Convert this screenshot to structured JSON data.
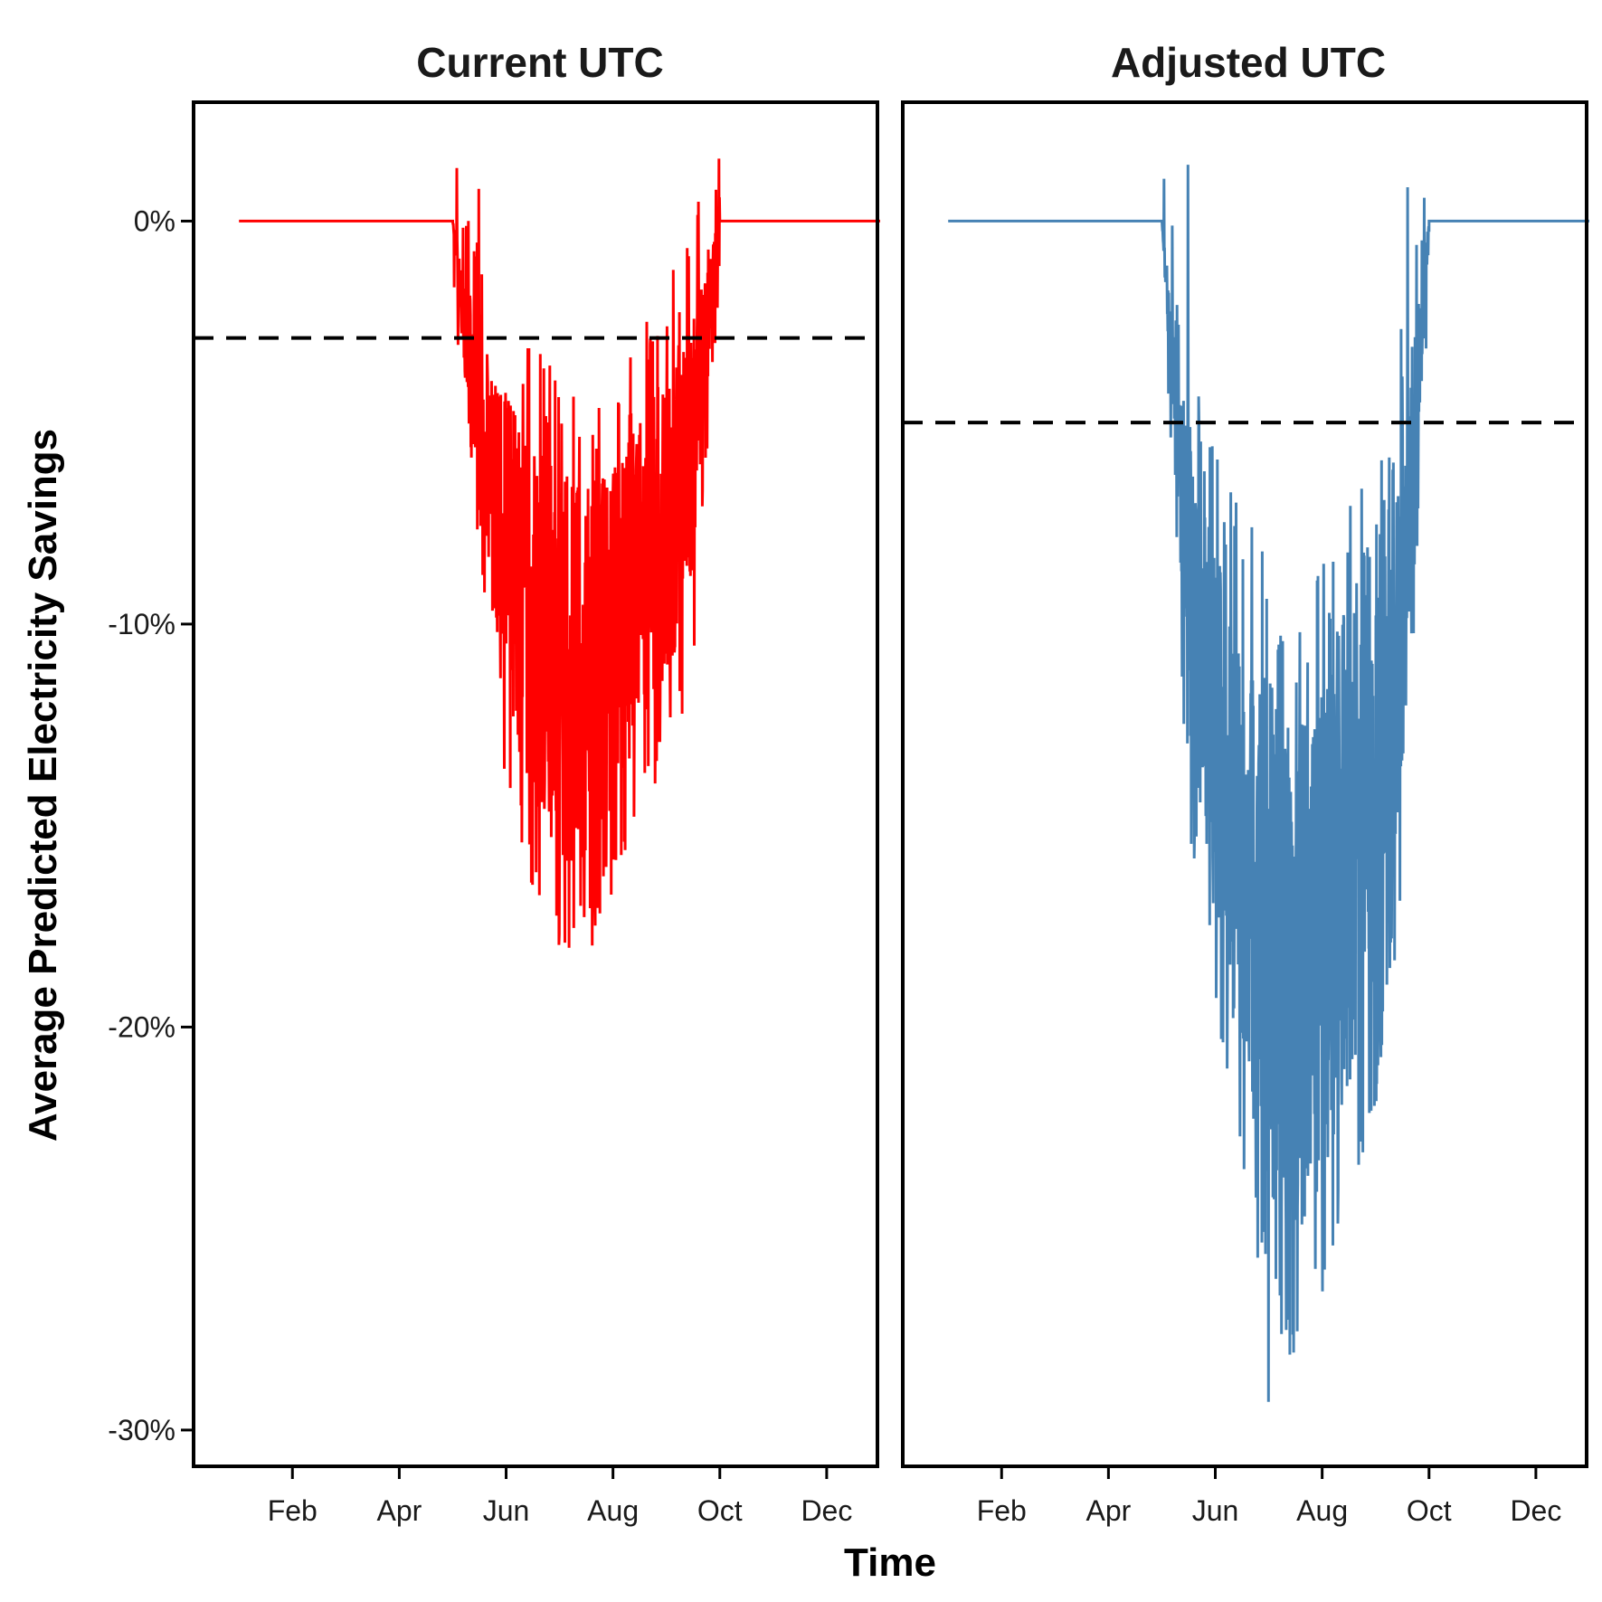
{
  "chart_data": {
    "type": "line",
    "xlabel": "Time",
    "ylabel": "Average Predicted Electricity Savings",
    "ylim": [
      -30.9,
      2.95
    ],
    "xlim_month": [
      0.15,
      12.95
    ],
    "y_ticks": [
      {
        "value": 0,
        "label": "0%"
      },
      {
        "value": -10,
        "label": "-10%"
      },
      {
        "value": -20,
        "label": "-20%"
      },
      {
        "value": -30,
        "label": "-30%"
      }
    ],
    "x_ticks": [
      {
        "value": 2,
        "label": "Feb"
      },
      {
        "value": 4,
        "label": "Apr"
      },
      {
        "value": 6,
        "label": "Jun"
      },
      {
        "value": 8,
        "label": "Aug"
      },
      {
        "value": 10,
        "label": "Oct"
      },
      {
        "value": 12,
        "label": "Dec"
      }
    ],
    "grid": false,
    "legend": "none",
    "panels": [
      {
        "title": "Current UTC",
        "color": "#ff0000",
        "mean_line": -2.9,
        "series": {
          "x_month": [
            1.0,
            5.0,
            5.5,
            6.0,
            6.5,
            7.0,
            7.5,
            8.0,
            8.5,
            9.0,
            9.5,
            10.0,
            13.0
          ],
          "y_band_upper": [
            0,
            0,
            -2.5,
            -3.8,
            -4.8,
            -5.6,
            -6.0,
            -5.6,
            -4.5,
            -3.2,
            -2.0,
            0,
            0
          ],
          "y_band_lower": [
            0,
            0,
            -9.5,
            -13.0,
            -15.5,
            -17.0,
            -17.2,
            -15.5,
            -13.5,
            -12.5,
            -9.5,
            0,
            0
          ],
          "y_max_spike": 0.8,
          "y_min_spike": -17.7
        }
      },
      {
        "title": "Adjusted UTC",
        "color": "#4682b4",
        "mean_line": -5.0,
        "series": {
          "x_month": [
            1.0,
            5.0,
            5.5,
            6.0,
            6.5,
            7.0,
            7.5,
            8.0,
            8.5,
            9.0,
            9.5,
            10.0,
            13.0
          ],
          "y_band_upper": [
            0,
            0,
            -5.0,
            -7.5,
            -9.0,
            -10.5,
            -11.5,
            -10.5,
            -8.5,
            -6.5,
            -4.0,
            0,
            0
          ],
          "y_band_lower": [
            0,
            0,
            -13.5,
            -18.5,
            -22.5,
            -25.5,
            -27.0,
            -25.5,
            -23.0,
            -20.5,
            -15.5,
            0,
            0
          ],
          "y_max_spike": 1.4,
          "y_min_spike": -29.3
        }
      }
    ]
  }
}
